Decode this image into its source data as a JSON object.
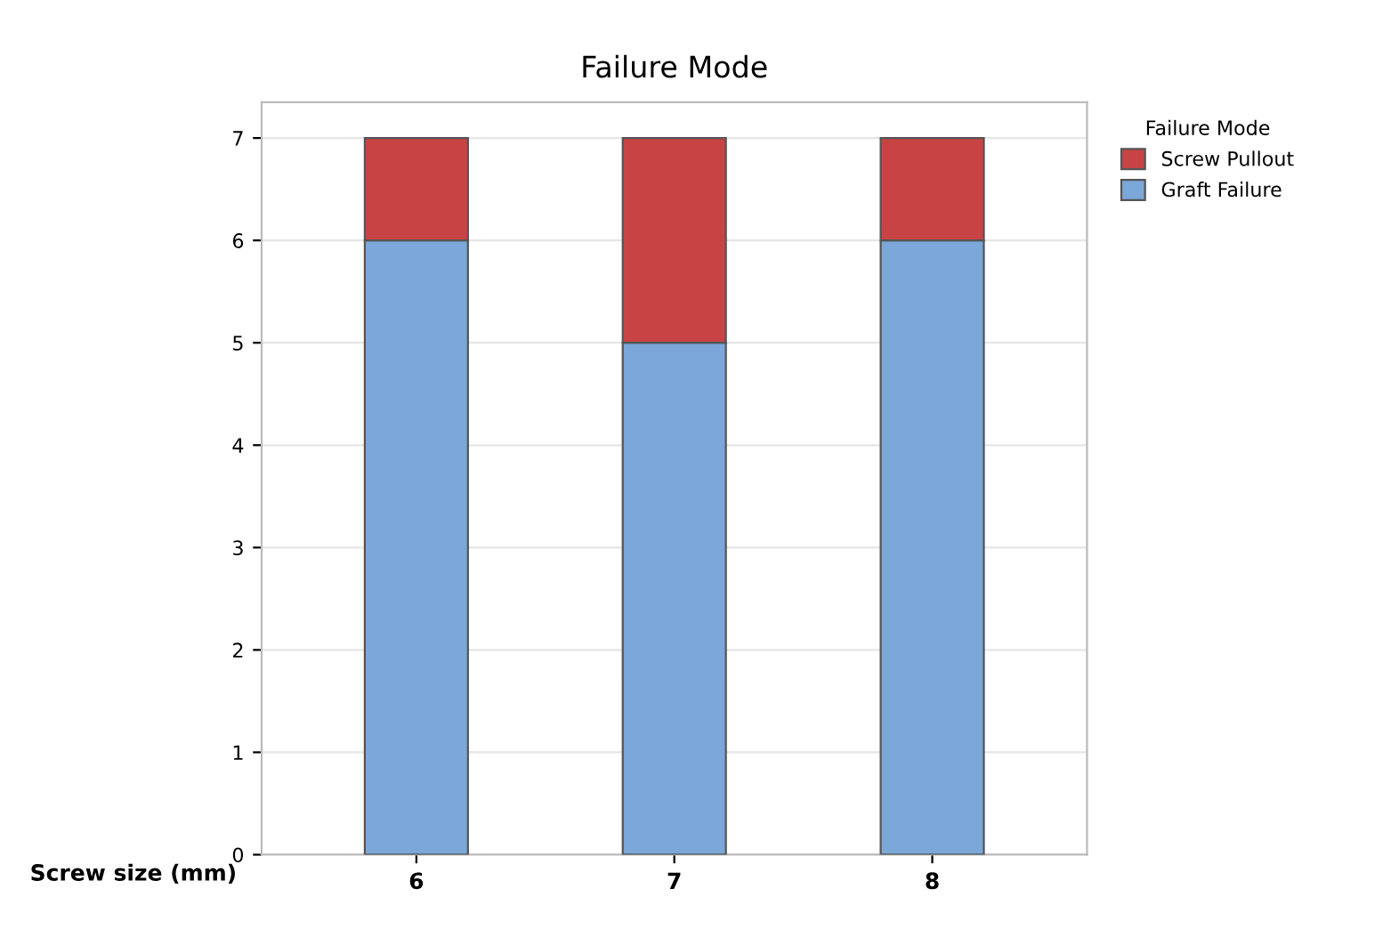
{
  "chart_data": {
    "type": "bar",
    "title": "Failure Mode",
    "xlabel": "Screw size (mm)",
    "legend_title": "Failure Mode",
    "categories": [
      "6",
      "7",
      "8"
    ],
    "stacked": true,
    "series": [
      {
        "name": "Graft Failure",
        "color": "#7ba7d9",
        "values": [
          6,
          5,
          6
        ]
      },
      {
        "name": "Screw Pullout",
        "color": "#c84444",
        "values": [
          1,
          2,
          1
        ]
      }
    ],
    "ylim": [
      0,
      7.35
    ],
    "yticks": [
      0,
      1,
      2,
      3,
      4,
      5,
      6,
      7
    ],
    "grid": "y",
    "legend": "top right"
  }
}
